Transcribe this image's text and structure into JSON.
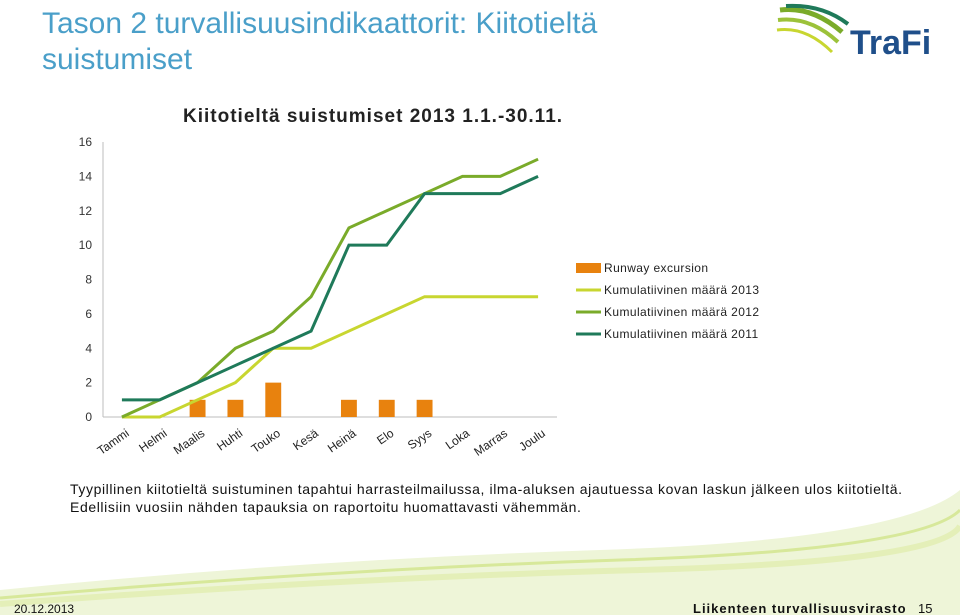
{
  "slide": {
    "title": "Tason 2 turvallisuusindikaattorit: Kiitotieltä suistumiset",
    "logo_text": "TraFi"
  },
  "chart_data": {
    "type": "bar",
    "title": "Kiitotieltä suistumiset 2013 1.1.-30.11.",
    "categories": [
      "Tammi",
      "Helmi",
      "Maalis",
      "Huhti",
      "Touko",
      "Kesä",
      "Heinä",
      "Elo",
      "Syys",
      "Loka",
      "Marras",
      "Joulu"
    ],
    "ylim": [
      0,
      16
    ],
    "yticks": [
      0,
      2,
      4,
      6,
      8,
      10,
      12,
      14,
      16
    ],
    "legend_position": "right",
    "grid": false,
    "series": [
      {
        "name": "Runway excursion",
        "kind": "bar",
        "color": "#e8820e",
        "values": [
          0,
          0,
          1,
          1,
          2,
          0,
          1,
          1,
          1,
          0,
          0,
          0
        ]
      },
      {
        "name": "Kumulatiivinen määrä 2013",
        "kind": "line",
        "color": "#c8d630",
        "values": [
          0,
          0,
          1,
          2,
          4,
          4,
          5,
          6,
          7,
          7,
          7,
          7
        ]
      },
      {
        "name": "Kumulatiivinen määrä 2012",
        "kind": "line",
        "color": "#7aab2a",
        "values": [
          0,
          1,
          2,
          4,
          5,
          7,
          11,
          12,
          13,
          14,
          14,
          15
        ]
      },
      {
        "name": "Kumulatiivinen määrä 2011",
        "kind": "line",
        "color": "#1f7a5a",
        "values": [
          1,
          1,
          2,
          3,
          4,
          5,
          10,
          10,
          13,
          13,
          13,
          14
        ]
      }
    ]
  },
  "note": "Tyypillinen kiitotieltä suistuminen tapahtui harrasteilmailussa, ilma-aluksen ajautuessa kovan laskun jälkeen ulos kiitotieltä. Edellisiin vuosiin nähden tapauksia on raportoitu huomattavasti vähemmän.",
  "footer": {
    "date": "20.12.2013",
    "org": "Liikenteen turvallisuusvirasto",
    "page": "15"
  }
}
